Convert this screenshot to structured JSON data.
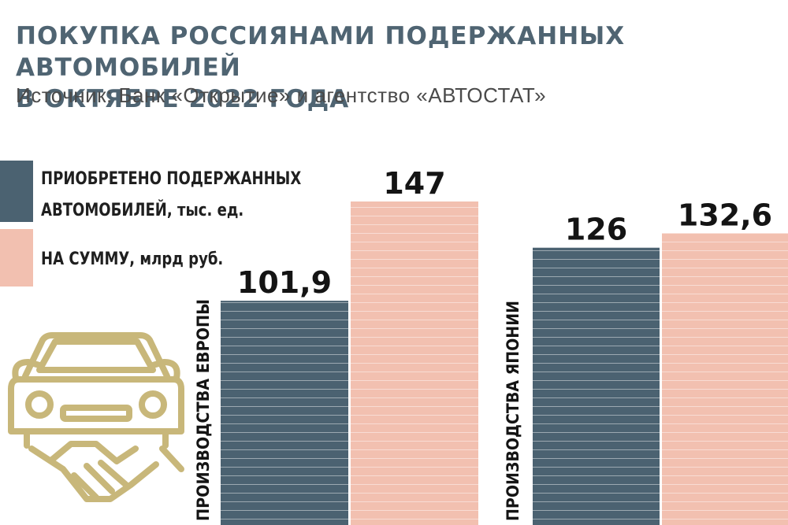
{
  "header": {
    "title_line1": "ПОКУПКА РОССИЯНАМИ ПОДЕРЖАННЫХ АВТОМОБИЛЕЙ",
    "title_line2": "В ОКТЯБРЕ 2022 ГОДА",
    "source": "Источник: Банк «Открытие» и агентство «АВТОСТАТ»"
  },
  "legend": {
    "bought_line1": "ПРИОБРЕТЕНО ПОДЕРЖАННЫХ",
    "bought_line2": "АВТОМОБИЛЕЙ, тыс. ед.",
    "sum": "НА СУММУ, млрд руб."
  },
  "colors": {
    "title": "#4f6472",
    "bought": "#4b6271",
    "sum": "#f2c0b0",
    "icon": "#c8b77a"
  },
  "icon": "car-handshake-icon",
  "chart_data": {
    "type": "bar",
    "categories": [
      "ПРОИЗВОДСТВА ЕВРОПЫ",
      "ПРОИЗВОДСТВА ЯПОНИИ"
    ],
    "series": [
      {
        "name": "ПРИОБРЕТЕНО ПОДЕРЖАННЫХ АВТОМОБИЛЕЙ, тыс. ед.",
        "values": [
          101.9,
          126
        ],
        "labels": [
          "101,9",
          "126"
        ]
      },
      {
        "name": "НА СУММУ, млрд руб.",
        "values": [
          147,
          132.6
        ],
        "labels": [
          "147",
          "132,6"
        ]
      }
    ],
    "grid": false,
    "legend_position": "top-left"
  }
}
